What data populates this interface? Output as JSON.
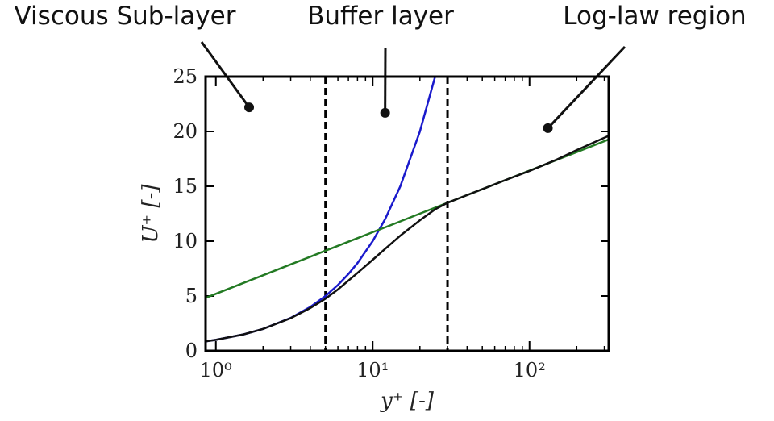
{
  "chart_data": {
    "type": "line",
    "x_label": "y⁺ [-]",
    "y_label": "U⁺ [-]",
    "xscale": "log",
    "xlim": [
      0.86,
      320
    ],
    "ylim": [
      0,
      25
    ],
    "xticks": [
      {
        "value": 1,
        "label": "10⁰"
      },
      {
        "value": 10,
        "label": "10¹"
      },
      {
        "value": 100,
        "label": "10²"
      }
    ],
    "xticks_minor": [
      2,
      3,
      4,
      5,
      6,
      7,
      8,
      9,
      20,
      30,
      40,
      50,
      60,
      70,
      80,
      90,
      200,
      300
    ],
    "yticks": [
      0,
      5,
      10,
      15,
      20,
      25
    ],
    "vlines": [
      5,
      30
    ],
    "x": [
      0.86,
      1,
      1.5,
      2,
      3,
      4,
      5,
      6,
      7,
      8,
      10,
      12,
      15,
      20,
      25,
      30,
      40,
      50,
      70,
      100,
      150,
      200,
      320
    ],
    "series": [
      {
        "color": "#1a1acc",
        "values": [
          0.86,
          1,
          1.5,
          2,
          3,
          4,
          5,
          6,
          7,
          8,
          10,
          12,
          15,
          20,
          25,
          null,
          null,
          null,
          null,
          null,
          null,
          null,
          null
        ]
      },
      {
        "color": "#237a23",
        "values": [
          4.83,
          5.2,
          6.19,
          6.89,
          7.88,
          8.58,
          9.13,
          9.57,
          9.95,
          10.27,
          10.82,
          11.26,
          11.8,
          12.51,
          13.05,
          13.5,
          14.2,
          14.74,
          15.56,
          16.43,
          17.42,
          18.12,
          19.27
        ]
      },
      {
        "color": "#111111",
        "values": [
          0.86,
          1,
          1.5,
          2,
          2.98,
          3.9,
          4.75,
          5.6,
          6.4,
          7.1,
          8.3,
          9.3,
          10.5,
          11.9,
          12.9,
          13.5,
          14.2,
          14.74,
          15.56,
          16.4,
          17.45,
          18.3,
          19.6
        ]
      }
    ],
    "annotations": [
      {
        "text": "Viscous Sub-layer",
        "x": 1.63,
        "y": 22.2
      },
      {
        "text": "Buffer layer",
        "x": 12,
        "y": 21.7
      },
      {
        "text": "Log-law region",
        "x": 131,
        "y": 20.3
      }
    ]
  }
}
